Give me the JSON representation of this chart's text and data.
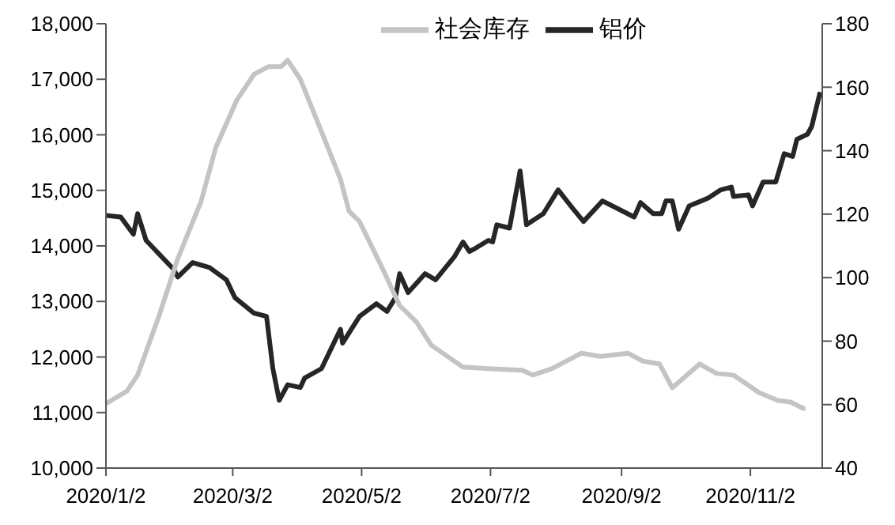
{
  "chart_data": {
    "type": "line",
    "legend": "top",
    "marker": "none",
    "line_style": "solid",
    "xlim": [
      "2020-01-02",
      "2020-12-06"
    ],
    "xticks": [
      {
        "value": "2020-01-02",
        "label": "2020/1/2"
      },
      {
        "value": "2020-03-02",
        "label": "2020/3/2"
      },
      {
        "value": "2020-05-02",
        "label": "2020/5/2"
      },
      {
        "value": "2020-07-02",
        "label": "2020/7/2"
      },
      {
        "value": "2020-09-02",
        "label": "2020/9/2"
      },
      {
        "value": "2020-11-02",
        "label": "2020/11/2"
      }
    ],
    "ylim": [
      10000,
      18000
    ],
    "yticks": [
      {
        "value": 10000,
        "label": "10,000"
      },
      {
        "value": 11000,
        "label": "11,000"
      },
      {
        "value": 12000,
        "label": "12,000"
      },
      {
        "value": 13000,
        "label": "13,000"
      },
      {
        "value": 14000,
        "label": "14,000"
      },
      {
        "value": 15000,
        "label": "15,000"
      },
      {
        "value": 16000,
        "label": "16,000"
      },
      {
        "value": 17000,
        "label": "17,000"
      },
      {
        "value": 18000,
        "label": "18,000"
      }
    ],
    "y2lim": [
      40,
      180
    ],
    "y2ticks": [
      40,
      60,
      80,
      100,
      120,
      140,
      160,
      180
    ],
    "series": [
      {
        "name": "铝价",
        "color": "#262626",
        "x": [
          "2020-01-02",
          "2020-01-09",
          "2020-01-15",
          "2020-01-17",
          "2020-01-21",
          "2020-02-03",
          "2020-02-05",
          "2020-02-12",
          "2020-02-20",
          "2020-02-28",
          "2020-03-03",
          "2020-03-12",
          "2020-03-18",
          "2020-03-21",
          "2020-03-24",
          "2020-03-28",
          "2020-04-03",
          "2020-04-05",
          "2020-04-13",
          "2020-04-22",
          "2020-04-23",
          "2020-05-01",
          "2020-05-09",
          "2020-05-14",
          "2020-05-18",
          "2020-05-20",
          "2020-05-24",
          "2020-06-01",
          "2020-06-06",
          "2020-06-15",
          "2020-06-19",
          "2020-06-22",
          "2020-06-25",
          "2020-07-01",
          "2020-07-03",
          "2020-07-05",
          "2020-07-11",
          "2020-07-16",
          "2020-07-19",
          "2020-07-27",
          "2020-08-03",
          "2020-08-10",
          "2020-08-15",
          "2020-08-24",
          "2020-09-08",
          "2020-09-11",
          "2020-09-17",
          "2020-09-21",
          "2020-09-23",
          "2020-09-26",
          "2020-09-29",
          "2020-10-04",
          "2020-10-13",
          "2020-10-19",
          "2020-10-24",
          "2020-10-25",
          "2020-11-01",
          "2020-11-03",
          "2020-11-08",
          "2020-11-14",
          "2020-11-18",
          "2020-11-22",
          "2020-11-24",
          "2020-11-29",
          "2020-12-01",
          "2020-12-05"
        ],
        "values": [
          14550,
          14520,
          14210,
          14580,
          14100,
          13580,
          13440,
          13700,
          13610,
          13390,
          13070,
          12790,
          12730,
          11790,
          11220,
          11500,
          11450,
          11620,
          11790,
          12500,
          12250,
          12730,
          12960,
          12820,
          13070,
          13500,
          13160,
          13500,
          13390,
          13810,
          14070,
          13900,
          13960,
          14100,
          14070,
          14380,
          14320,
          15350,
          14380,
          14580,
          15010,
          14670,
          14440,
          14810,
          14520,
          14780,
          14580,
          14580,
          14810,
          14810,
          14300,
          14720,
          14860,
          15010,
          15060,
          14890,
          14920,
          14720,
          15150,
          15150,
          15660,
          15610,
          15920,
          16010,
          16150,
          16770
        ]
      },
      {
        "name": "社会库存",
        "color": "#c4c4c4",
        "axis": "y2",
        "x": [
          "2020-01-02",
          "2020-01-12",
          "2020-01-17",
          "2020-01-27",
          "2020-02-05",
          "2020-02-16",
          "2020-02-23",
          "2020-03-04",
          "2020-03-12",
          "2020-03-19",
          "2020-03-25",
          "2020-03-28",
          "2020-04-03",
          "2020-04-13",
          "2020-04-22",
          "2020-04-26",
          "2020-05-01",
          "2020-05-12",
          "2020-05-20",
          "2020-05-28",
          "2020-06-04",
          "2020-06-19",
          "2020-07-01",
          "2020-07-17",
          "2020-07-22",
          "2020-07-31",
          "2020-08-14",
          "2020-08-23",
          "2020-09-05",
          "2020-09-12",
          "2020-09-20",
          "2020-09-26",
          "2020-10-09",
          "2020-10-17",
          "2020-10-25",
          "2020-11-06",
          "2020-11-15",
          "2020-11-21",
          "2020-11-27",
          "2020-11-28"
        ],
        "values": [
          60.3,
          64.3,
          69.3,
          87.7,
          106,
          124,
          141,
          156,
          164,
          166.5,
          166.5,
          168.5,
          162.5,
          146,
          131,
          121,
          117.7,
          102.7,
          91.2,
          86,
          78.7,
          71.8,
          71.3,
          70.8,
          69.3,
          71.3,
          76.2,
          75.2,
          76.2,
          73.7,
          72.8,
          65.3,
          72.8,
          69.8,
          69.3,
          63.8,
          61.3,
          60.8,
          58.8,
          58.8
        ]
      }
    ]
  }
}
